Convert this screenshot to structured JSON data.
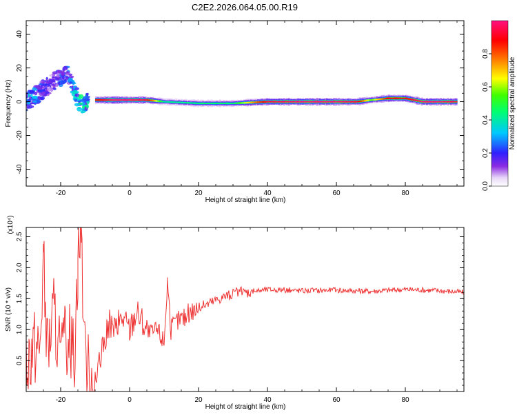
{
  "page": {
    "title": "C2E2.2026.064.05.00.R19"
  },
  "chart_data": [
    {
      "type": "heatmap",
      "xlabel": "Height of straight line (km)",
      "ylabel": "Frequency (Hz)",
      "xlim": [
        -30,
        97
      ],
      "ylim": [
        -50,
        48
      ],
      "xticks": [
        -20,
        0,
        20,
        40,
        60,
        80
      ],
      "xtick_labels": [
        "-20",
        "0",
        "20",
        "40",
        "60",
        "80"
      ],
      "yticks": [
        -40,
        -20,
        0,
        20,
        40
      ],
      "ytick_labels": [
        "-40",
        "-20",
        "0",
        "20",
        "40"
      ],
      "colorbar": {
        "label": "Normalized spectral amplitude",
        "range": [
          0,
          1
        ],
        "ticks": [
          0.0,
          0.2,
          0.4,
          0.6,
          0.8
        ],
        "tick_labels": [
          "0.0",
          "0.2",
          "0.4",
          "0.6",
          "0.8"
        ],
        "colormap": "rainbow (white-violet-blue-cyan-green-yellow-red-magenta)"
      },
      "ridge": {
        "x": [
          -10,
          -5,
          0,
          5,
          10,
          20,
          30,
          40,
          50,
          60,
          66,
          70,
          75,
          80,
          85,
          90,
          95
        ],
        "y": [
          1,
          1,
          1,
          1,
          0,
          -1,
          -1,
          0,
          0,
          0,
          0,
          1,
          2,
          2,
          0,
          0,
          0
        ],
        "peak_amplitude": [
          0.85,
          1.0,
          1.0,
          0.95,
          0.4,
          0.45,
          0.45,
          0.95,
          1.0,
          1.0,
          0.95,
          0.55,
          0.9,
          0.9,
          1.0,
          1.0,
          0.95
        ]
      },
      "scattered_signal": {
        "x": [
          -30,
          -28,
          -26,
          -24,
          -22,
          -20,
          -18,
          -16,
          -14,
          -12
        ],
        "y_center": [
          0,
          2,
          6,
          9,
          12,
          14,
          16,
          5,
          -2,
          0
        ],
        "amplitude": [
          0.3,
          0.25,
          0.2,
          0.15,
          0.15,
          0.2,
          0.2,
          0.3,
          0.35,
          0.3
        ]
      }
    },
    {
      "type": "line",
      "xlabel": "Height of straight line (km)",
      "ylabel": "SNR (10 * v/v)",
      "scale_label": "(x10⁴)",
      "xlim": [
        -30,
        97
      ],
      "ylim": [
        0,
        2.65
      ],
      "xticks": [
        -20,
        0,
        20,
        40,
        60,
        80
      ],
      "xtick_labels": [
        "-20",
        "0",
        "20",
        "40",
        "60",
        "80"
      ],
      "yticks": [
        0.5,
        1.0,
        1.5,
        2.0,
        2.5
      ],
      "ytick_labels": [
        "0.5",
        "1.0",
        "1.5",
        "2.0",
        "2.5"
      ],
      "line_color": "#ee3333",
      "series": [
        {
          "x": [
            -30,
            -28,
            -26,
            -25,
            -24,
            -22,
            -20,
            -18,
            -16,
            -15,
            -14,
            -13,
            -12,
            -10,
            -8,
            -6,
            -4,
            -2,
            0,
            2,
            4,
            6,
            8,
            10,
            11,
            12,
            14,
            16,
            18,
            20,
            24,
            28,
            32,
            36,
            40,
            50,
            60,
            70,
            80,
            90,
            97
          ],
          "y": [
            0.5,
            0.8,
            0.7,
            2.25,
            0.6,
            1.3,
            0.5,
            0.9,
            0.7,
            2.15,
            2.65,
            0.5,
            0.4,
            0.1,
            0.6,
            1.1,
            1.0,
            1.2,
            1.0,
            1.3,
            1.1,
            0.9,
            1.0,
            0.8,
            1.8,
            1.0,
            1.15,
            1.2,
            1.3,
            1.35,
            1.45,
            1.55,
            1.6,
            1.62,
            1.65,
            1.63,
            1.64,
            1.62,
            1.65,
            1.63,
            1.6
          ]
        }
      ]
    }
  ]
}
